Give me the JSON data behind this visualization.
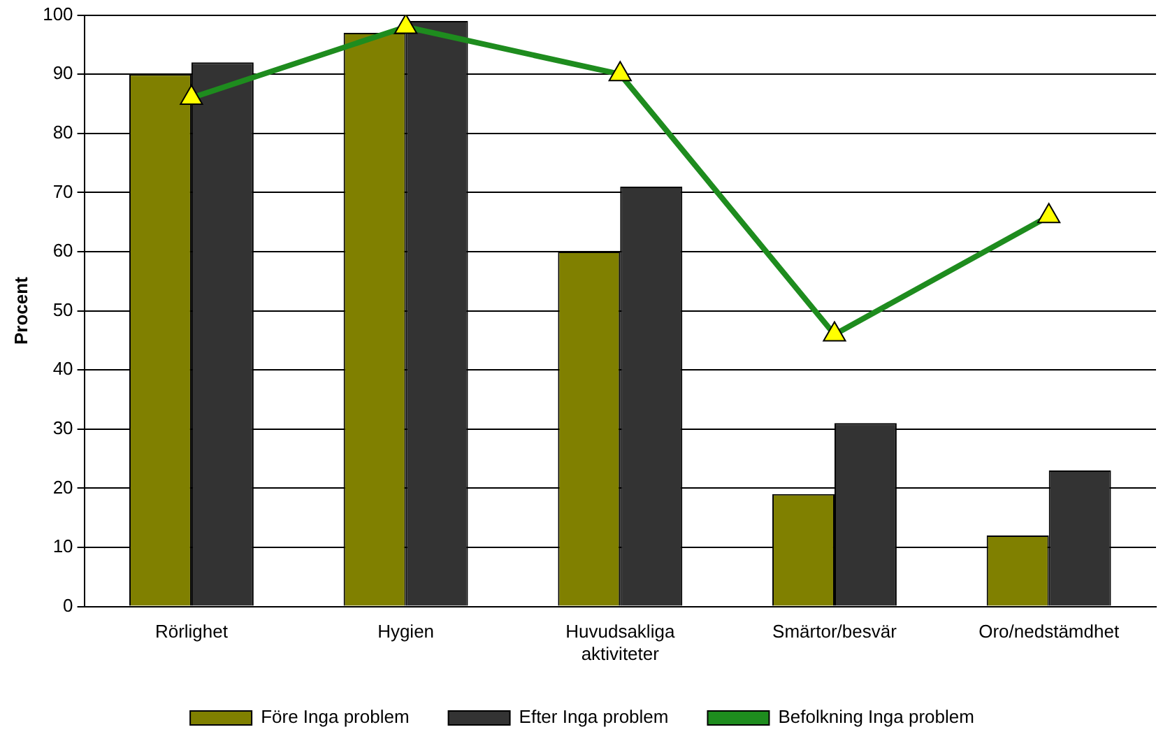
{
  "chart_data": {
    "type": "bar",
    "ylabel": "Procent",
    "categories": [
      "Rörlighet",
      "Hygien",
      "Huvudsakliga aktiviteter",
      "Smärtor/besvär",
      "Oro/nedstämdhet"
    ],
    "series": [
      {
        "name": "Före Inga problem",
        "color": "#808000",
        "values": [
          90,
          97,
          60,
          19,
          12
        ]
      },
      {
        "name": "Efter Inga problem",
        "color": "#333333",
        "values": [
          92,
          99,
          71,
          31,
          23
        ]
      },
      {
        "name": "Befolkning Inga problem",
        "type": "line",
        "color": "#1e8c1e",
        "marker": "triangle",
        "values": [
          86,
          98,
          90,
          46,
          66
        ]
      }
    ],
    "ylim": [
      0,
      100
    ],
    "yticks": [
      0,
      10,
      20,
      30,
      40,
      50,
      60,
      70,
      80,
      90,
      100
    ],
    "grid": "y",
    "legend": "bottom"
  }
}
